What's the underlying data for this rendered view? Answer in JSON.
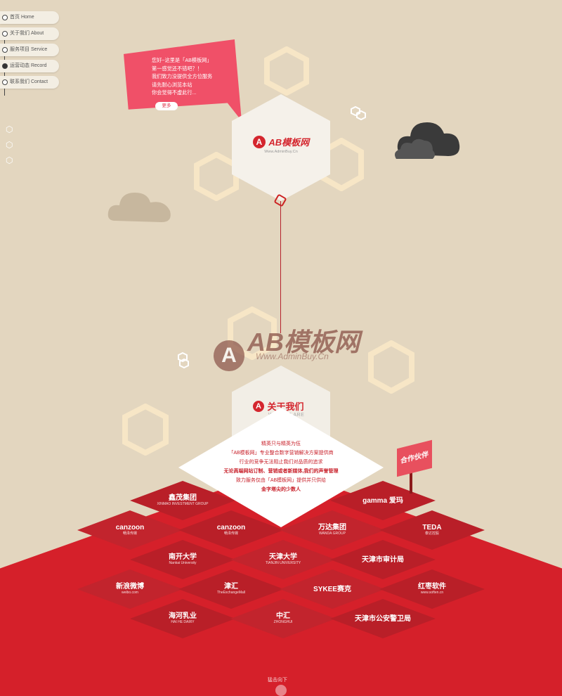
{
  "nav": {
    "items": [
      {
        "label": "首页 Home"
      },
      {
        "label": "关于我们 About"
      },
      {
        "label": "服务项目 Service"
      },
      {
        "label": "运营动态 Record"
      },
      {
        "label": "联系我们 Contact"
      }
    ]
  },
  "bubble": {
    "lines": [
      "您好~这里是「AB模板网」",
      "第一感觉还不错吧？！",
      "我们致力没提供全方位服务",
      "请先耐心浏览本站",
      "你会觉得不虚此行..."
    ],
    "button": "更多"
  },
  "brand": {
    "name": "AB模板网",
    "mark": "A",
    "url": "Www.AdminBuy.Cn"
  },
  "watermark": {
    "name": "AB模板网",
    "mark": "A",
    "url": "Www.AdminBuy.Cn"
  },
  "about": {
    "title": "关于我们",
    "subtitle": "WHO WE ARE",
    "lines": [
      "精英只与精英为伍",
      "「AB模板网」专业整合数字营销解决方案提供商",
      "行业的竞争无法阻止我们对品质的追求",
      "无论高端网站订制、营销或者新媒体,我们的声誉管理",
      "致力服务仅由「AB模板网」提供并只供给",
      "金字塔尖的少数人"
    ]
  },
  "partners": {
    "sign": "合作伙伴",
    "logos": [
      {
        "name": "鑫茂集团",
        "en": "XINMAO INVESTMENT GROUP"
      },
      {
        "name": "gamma 爱玛",
        "en": ""
      },
      {
        "name": "canzoon",
        "en": "畅泽传媒"
      },
      {
        "name": "canzoon",
        "en": "畅泽传媒"
      },
      {
        "name": "万达集团",
        "en": "WANDA GROUP"
      },
      {
        "name": "TEDA",
        "en": "泰达控股"
      },
      {
        "name": "南开大学",
        "en": "Nankai University"
      },
      {
        "name": "天津大学",
        "en": "TIANJIN UNIVERSITY"
      },
      {
        "name": "天津市审计局",
        "en": ""
      },
      {
        "name": "新浪微博",
        "en": "weibo.com"
      },
      {
        "name": "津汇",
        "en": "TheExchangeMall"
      },
      {
        "name": "SYKEE赛克",
        "en": ""
      },
      {
        "name": "红枣软件",
        "en": "www.soften.cn"
      },
      {
        "name": "海河乳业",
        "en": "HAI HE DAIRY"
      },
      {
        "name": "中汇",
        "en": "ZHONGHUI"
      },
      {
        "name": "天津市公安警卫局",
        "en": ""
      }
    ]
  },
  "scroll": {
    "label": "猛击向下"
  }
}
